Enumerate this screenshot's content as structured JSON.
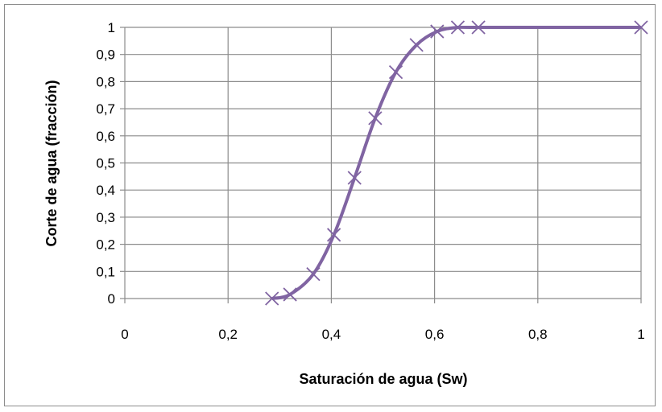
{
  "chart_data": {
    "type": "scatter",
    "title": "",
    "xlabel": "Saturación de agua (Sw)",
    "ylabel": "Corte de agua (fracción)",
    "xlim": [
      0,
      1
    ],
    "ylim": [
      0,
      1
    ],
    "x_ticks": [
      0,
      0.2,
      0.4,
      0.6,
      0.8,
      1
    ],
    "x_tick_labels": [
      "0",
      "0,2",
      "0,4",
      "0,6",
      "0,8",
      "1"
    ],
    "y_ticks": [
      0,
      0.1,
      0.2,
      0.3,
      0.4,
      0.5,
      0.6,
      0.7,
      0.8,
      0.9,
      1
    ],
    "y_tick_labels": [
      "0",
      "0,1",
      "0,2",
      "0,3",
      "0,4",
      "0,5",
      "0,6",
      "0,7",
      "0,8",
      "0,9",
      "1"
    ],
    "grid": true,
    "legend": "none",
    "line_style": "smooth line with x markers",
    "series": [
      {
        "color": "#8064a2",
        "x": [
          0.285,
          0.32,
          0.365,
          0.405,
          0.445,
          0.485,
          0.525,
          0.565,
          0.605,
          0.645,
          0.685,
          1.0
        ],
        "y": [
          0.0,
          0.015,
          0.09,
          0.235,
          0.445,
          0.665,
          0.835,
          0.935,
          0.985,
          1.0,
          1.0,
          1.0
        ]
      }
    ]
  }
}
